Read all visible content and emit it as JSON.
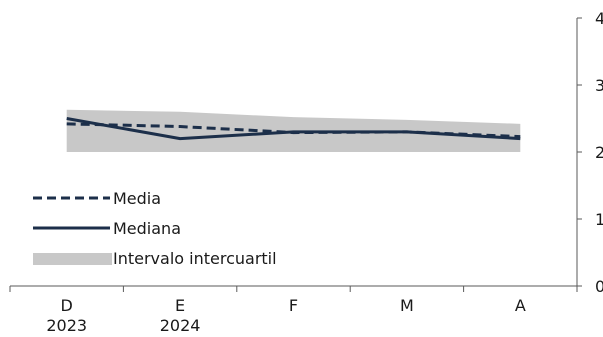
{
  "chart_data": {
    "type": "line",
    "categories": [
      "D\n2023",
      "E\n2024",
      "F",
      "M",
      "A"
    ],
    "x_tick_lines": [
      [
        "D",
        "2023"
      ],
      [
        "E",
        "2024"
      ],
      [
        "F"
      ],
      [
        "M"
      ],
      [
        "A"
      ]
    ],
    "ylim": [
      0,
      4
    ],
    "y_ticks": [
      0,
      1,
      2,
      3,
      4
    ],
    "y_tick_labels": [
      "0",
      "1",
      "2",
      "3",
      "4"
    ],
    "series": [
      {
        "name": "Media",
        "style": "dashed",
        "color": "#1c2f4a",
        "values": [
          2.42,
          2.38,
          2.29,
          2.3,
          2.23
        ]
      },
      {
        "name": "Mediana",
        "style": "solid",
        "color": "#1c2f4a",
        "values": [
          2.5,
          2.2,
          2.3,
          2.3,
          2.2
        ]
      }
    ],
    "band": {
      "name": "Intervalo intercuartil",
      "color": "#c8c8c8",
      "lower": [
        2.0,
        2.0,
        2.0,
        2.0,
        2.0
      ],
      "upper": [
        2.63,
        2.6,
        2.52,
        2.48,
        2.42
      ]
    },
    "legend_position": "bottom-left",
    "grid": false
  }
}
